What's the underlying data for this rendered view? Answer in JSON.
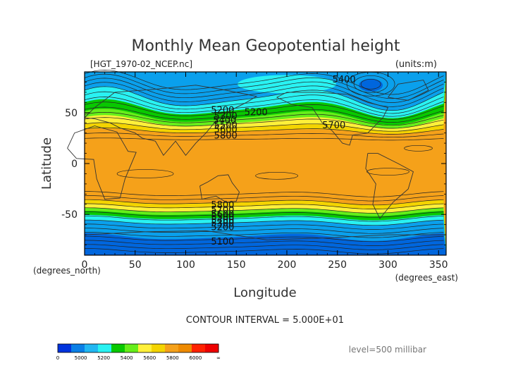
{
  "chart_data": {
    "type": "contour",
    "title": "Monthly Mean Geopotential height",
    "file_label": "[HGT_1970-02_NCEP.nc]",
    "units_label": "(units:m)",
    "xlabel": "Longitude",
    "ylabel": "Latitude",
    "x_unit_label": "(degrees_east)",
    "y_unit_label": "(degrees_north)",
    "xlim": [
      0,
      357.5
    ],
    "ylim": [
      -90,
      90
    ],
    "x_ticks": [
      0,
      50,
      100,
      150,
      200,
      250,
      300,
      350
    ],
    "y_ticks": [
      -50,
      0,
      50
    ],
    "contour_interval_text": "CONTOUR INTERVAL = 5.000E+01",
    "level_text": "level=500 millibar",
    "contour_labels": [
      {
        "text": "5200",
        "x": 125,
        "y": 53
      },
      {
        "text": "5300",
        "x": 128,
        "y": 47
      },
      {
        "text": "5400",
        "x": 127,
        "y": 43
      },
      {
        "text": "5500",
        "x": 128,
        "y": 38
      },
      {
        "text": "5600",
        "x": 128,
        "y": 34
      },
      {
        "text": "5800",
        "x": 128,
        "y": 28
      },
      {
        "text": "5200",
        "x": 158,
        "y": 51
      },
      {
        "text": "5700",
        "x": 235,
        "y": 38
      },
      {
        "text": "5400",
        "x": 245,
        "y": 83
      },
      {
        "text": "5800",
        "x": 125,
        "y": -40
      },
      {
        "text": "5700",
        "x": 125,
        "y": -45
      },
      {
        "text": "5600",
        "x": 125,
        "y": -49
      },
      {
        "text": "5500",
        "x": 125,
        "y": -52
      },
      {
        "text": "5400",
        "x": 125,
        "y": -55
      },
      {
        "text": "5300",
        "x": 125,
        "y": -58
      },
      {
        "text": "5200",
        "x": 125,
        "y": -62
      },
      {
        "text": "5100",
        "x": 125,
        "y": -76
      }
    ],
    "colorbar": {
      "tick_labels": [
        "0",
        "5000",
        "5200",
        "5400",
        "5600",
        "5800",
        "6000",
        "∞"
      ],
      "colors": [
        "#0033dd",
        "#0a7fe6",
        "#22b7f2",
        "#29f2f2",
        "#08c800",
        "#66ee1a",
        "#fff03a",
        "#f4d400",
        "#f5a11a",
        "#ee8a00",
        "#ff2200",
        "#ee0000"
      ]
    },
    "fill_colors": {
      "c5000": "#0066dd",
      "c5150": "#0aa0ec",
      "c5300": "#29f2f2",
      "c5450": "#08c800",
      "c5600": "#66ee1a",
      "c5700": "#fff03a",
      "c5750": "#f4d400",
      "c5850": "#f5a11a"
    }
  }
}
